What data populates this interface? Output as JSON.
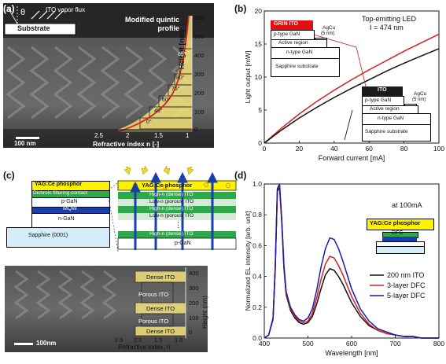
{
  "panels": {
    "a": {
      "letter": "(a)",
      "flux_label": "ITO vapor flux",
      "theta": "θ",
      "substrate": "Substrate",
      "profile_label": "Modified quintic profile",
      "height_label": "Height [nm]",
      "height_ticks": [
        "600",
        "500",
        "400",
        "300",
        "200",
        "100",
        "0"
      ],
      "angles": [
        "85°",
        "80°",
        "75°",
        "60°",
        "45°",
        "0°"
      ],
      "scale_bar": "100 nm",
      "xlabel": "Refractive index n [-]",
      "x_ticks": [
        "2.5",
        "2",
        "1.5",
        "1"
      ]
    },
    "b": {
      "letter": "(b)",
      "annotation_line1": "Top-emitting LED",
      "annotation_line2": "I = 474 nm",
      "inset_grin": {
        "top": "GRIN ITO",
        "metal": "AgCu",
        "metal_thk": "(5 nm)",
        "layer1": "p-type GaN",
        "layer2": "Active region",
        "layer3": "n-type GaN",
        "layer4": "Sapphire substrate"
      },
      "inset_ito": {
        "top": "ITO",
        "metal": "AgCu",
        "metal_thk": "(5 nm)",
        "layer1": "p-type GaN",
        "layer2": "Active region",
        "layer3": "n-type GaN",
        "layer4": "Sapphire substrate"
      }
    },
    "c": {
      "letter": "(c)",
      "layers": [
        "YAG:Ce phosphor",
        "Dichroic filtering contact",
        "p-GaN",
        "MQW",
        "n-GaN",
        "Sapphire (0001)"
      ],
      "stack_phosphor": "YAG:Ce phosphor",
      "stack_layers": [
        "High-n (dense) ITO",
        "Low-n (porous) ITO",
        "High-n (dense) ITO",
        "Low-n (porous) ITO",
        "High-n (dense) ITO",
        "p-GaN"
      ],
      "stack_dots": "⋮",
      "sem_labels": [
        "Dense ITO",
        "Porous ITO",
        "Dense ITO",
        "Porous ITO",
        "Dense ITO"
      ],
      "height_label": "Height (nm)",
      "height_ticks": [
        "400",
        "300",
        "200",
        "100",
        "0"
      ],
      "scale_bar": "100nm",
      "x_ticks": [
        "2.5",
        "2.0",
        "1.5",
        "1.0"
      ],
      "xlabel": "Refractive index, n"
    },
    "d": {
      "letter": "(d)",
      "annotation": "at 100mA",
      "inset_phosphor": "YAG:Ce phosphor",
      "inset_dfc": "DFC"
    }
  },
  "chart_data": [
    {
      "type": "line",
      "panel": "b",
      "xlabel": "Forward current [mA]",
      "ylabel": "Light output [mW]",
      "xlim": [
        0,
        100
      ],
      "ylim": [
        0,
        20
      ],
      "x_ticks": [
        0,
        20,
        40,
        60,
        80,
        100
      ],
      "y_ticks": [
        0,
        5,
        10,
        15,
        20
      ],
      "series": [
        {
          "color": "#d62020",
          "x": [
            0,
            10,
            20,
            30,
            40,
            50,
            60,
            70,
            80,
            90,
            100
          ],
          "y": [
            0,
            2.3,
            4.4,
            6.3,
            8.0,
            9.6,
            11.1,
            12.5,
            13.9,
            15.2,
            16.5
          ]
        },
        {
          "color": "#111111",
          "x": [
            0,
            10,
            20,
            30,
            40,
            50,
            60,
            70,
            80,
            90,
            100
          ],
          "y": [
            0,
            2.0,
            3.8,
            5.4,
            6.9,
            8.3,
            9.6,
            10.9,
            12.1,
            13.2,
            14.3
          ]
        }
      ]
    },
    {
      "type": "line",
      "panel": "d",
      "xlabel": "Wavelength [nm]",
      "ylabel": "Normalized EL intensity [arb. unit]",
      "xlim": [
        400,
        800
      ],
      "ylim": [
        0,
        1.0
      ],
      "x_ticks": [
        400,
        500,
        600,
        700,
        800
      ],
      "y_ticks": [
        0.0,
        0.2,
        0.4,
        0.6,
        0.8,
        1.0
      ],
      "legend_position": "bottom-right",
      "series": [
        {
          "name": "200 nm ITO",
          "color": "#111111",
          "x": [
            400,
            410,
            420,
            425,
            430,
            435,
            440,
            445,
            450,
            460,
            470,
            480,
            490,
            500,
            510,
            520,
            530,
            540,
            550,
            560,
            570,
            580,
            590,
            600,
            620,
            640,
            660,
            680,
            700,
            720,
            740,
            760,
            780,
            800
          ],
          "y": [
            0.0,
            0.02,
            0.12,
            0.45,
            0.95,
            0.98,
            0.75,
            0.45,
            0.28,
            0.18,
            0.13,
            0.1,
            0.09,
            0.1,
            0.14,
            0.22,
            0.32,
            0.41,
            0.45,
            0.44,
            0.4,
            0.35,
            0.29,
            0.23,
            0.14,
            0.08,
            0.05,
            0.03,
            0.02,
            0.01,
            0.01,
            0.0,
            0.0,
            0.0
          ]
        },
        {
          "name": "3-layer DFC",
          "color": "#d62020",
          "x": [
            400,
            410,
            420,
            425,
            430,
            435,
            440,
            445,
            450,
            460,
            470,
            480,
            490,
            500,
            510,
            520,
            530,
            540,
            550,
            560,
            570,
            580,
            590,
            600,
            620,
            640,
            660,
            680,
            700,
            720,
            740,
            760,
            780,
            800
          ],
          "y": [
            0.0,
            0.02,
            0.12,
            0.45,
            0.96,
            0.99,
            0.76,
            0.46,
            0.29,
            0.19,
            0.14,
            0.11,
            0.1,
            0.11,
            0.16,
            0.26,
            0.38,
            0.48,
            0.53,
            0.52,
            0.47,
            0.41,
            0.34,
            0.27,
            0.16,
            0.09,
            0.05,
            0.03,
            0.02,
            0.01,
            0.01,
            0.0,
            0.0,
            0.0
          ]
        },
        {
          "name": "5-layer DFC",
          "color": "#1a1aa8",
          "x": [
            400,
            410,
            420,
            425,
            430,
            435,
            440,
            445,
            450,
            460,
            470,
            480,
            490,
            500,
            510,
            520,
            530,
            540,
            550,
            560,
            570,
            580,
            590,
            600,
            620,
            640,
            660,
            680,
            700,
            720,
            740,
            760,
            780,
            800
          ],
          "y": [
            0.0,
            0.02,
            0.13,
            0.46,
            0.97,
            1.0,
            0.77,
            0.47,
            0.3,
            0.2,
            0.15,
            0.12,
            0.11,
            0.13,
            0.19,
            0.31,
            0.46,
            0.58,
            0.65,
            0.64,
            0.58,
            0.5,
            0.41,
            0.32,
            0.19,
            0.11,
            0.06,
            0.04,
            0.02,
            0.01,
            0.01,
            0.0,
            0.0,
            0.0
          ]
        }
      ]
    }
  ]
}
